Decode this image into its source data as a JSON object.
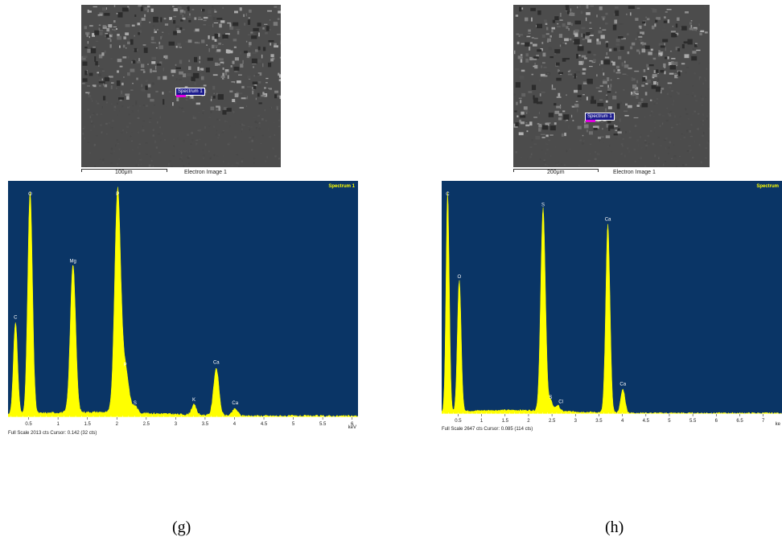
{
  "panels": [
    {
      "id": "g",
      "caption": "(g)",
      "sem": {
        "scale_label": "100μm",
        "image_label": "Electron Image 1",
        "spectrum_tag": "Spectrum 1"
      },
      "footer": "Full Scale 2013 cts Cursor: 0.142  (32 cts)",
      "unit": "keV",
      "chart_data": {
        "type": "line",
        "title": "Spectrum 1",
        "xlabel": "keV",
        "ylabel": "",
        "xlim": [
          0.15,
          6.1
        ],
        "ylim": [
          0,
          2013
        ],
        "xticks": [
          "0.5",
          "1",
          "1.5",
          "2",
          "2.5",
          "3",
          "3.5",
          "4",
          "4.5",
          "5",
          "5.5",
          "6"
        ],
        "xtick_values": [
          0.5,
          1,
          1.5,
          2,
          2.5,
          3,
          3.5,
          4,
          4.5,
          5,
          5.5,
          6
        ],
        "peaks": [
          {
            "label": "C",
            "x": 0.277,
            "y": 820,
            "w": 0.035
          },
          {
            "label": "O",
            "x": 0.525,
            "y": 1970,
            "w": 0.04
          },
          {
            "label": "Mg",
            "x": 1.254,
            "y": 1320,
            "w": 0.045
          },
          {
            "label": "P",
            "x": 2.013,
            "y": 1950,
            "w": 0.05
          },
          {
            "label": "P",
            "x": 2.14,
            "y": 400,
            "w": 0.06
          },
          {
            "label": "S",
            "x": 2.31,
            "y": 60,
            "w": 0.04
          },
          {
            "label": "K",
            "x": 3.31,
            "y": 90,
            "w": 0.04
          },
          {
            "label": "Ca",
            "x": 3.69,
            "y": 420,
            "w": 0.045
          },
          {
            "label": "Ca",
            "x": 4.01,
            "y": 60,
            "w": 0.045
          }
        ]
      }
    },
    {
      "id": "h",
      "caption": "(h)",
      "sem": {
        "scale_label": "200μm",
        "image_label": "Electron Image 1",
        "spectrum_tag": "Spectrum 1"
      },
      "footer": "Full Scale 2647 cts Cursor: 0.085  (114 cts)",
      "unit": "ke",
      "chart_data": {
        "type": "line",
        "title": "Spectrum",
        "xlabel": "ke",
        "ylabel": "",
        "xlim": [
          0.15,
          7.4
        ],
        "ylim": [
          0,
          2647
        ],
        "xticks": [
          "0.5",
          "1",
          "1.5",
          "2",
          "2.5",
          "3",
          "3.5",
          "4",
          "4.5",
          "5",
          "5.5",
          "6",
          "6.5",
          "7"
        ],
        "xtick_values": [
          0.5,
          1,
          1.5,
          2,
          2.5,
          3,
          3.5,
          4,
          4.5,
          5,
          5.5,
          6,
          6.5,
          7
        ],
        "peaks": [
          {
            "label": "C",
            "x": 0.277,
            "y": 2600,
            "w": 0.035
          },
          {
            "label": "O",
            "x": 0.525,
            "y": 1550,
            "w": 0.04
          },
          {
            "label": "S",
            "x": 2.31,
            "y": 2400,
            "w": 0.05
          },
          {
            "label": "S",
            "x": 2.47,
            "y": 120,
            "w": 0.045
          },
          {
            "label": "Cl",
            "x": 2.62,
            "y": 70,
            "w": 0.045
          },
          {
            "label": "Ca",
            "x": 3.69,
            "y": 2230,
            "w": 0.045
          },
          {
            "label": "Ca",
            "x": 4.01,
            "y": 280,
            "w": 0.045
          }
        ]
      }
    }
  ]
}
